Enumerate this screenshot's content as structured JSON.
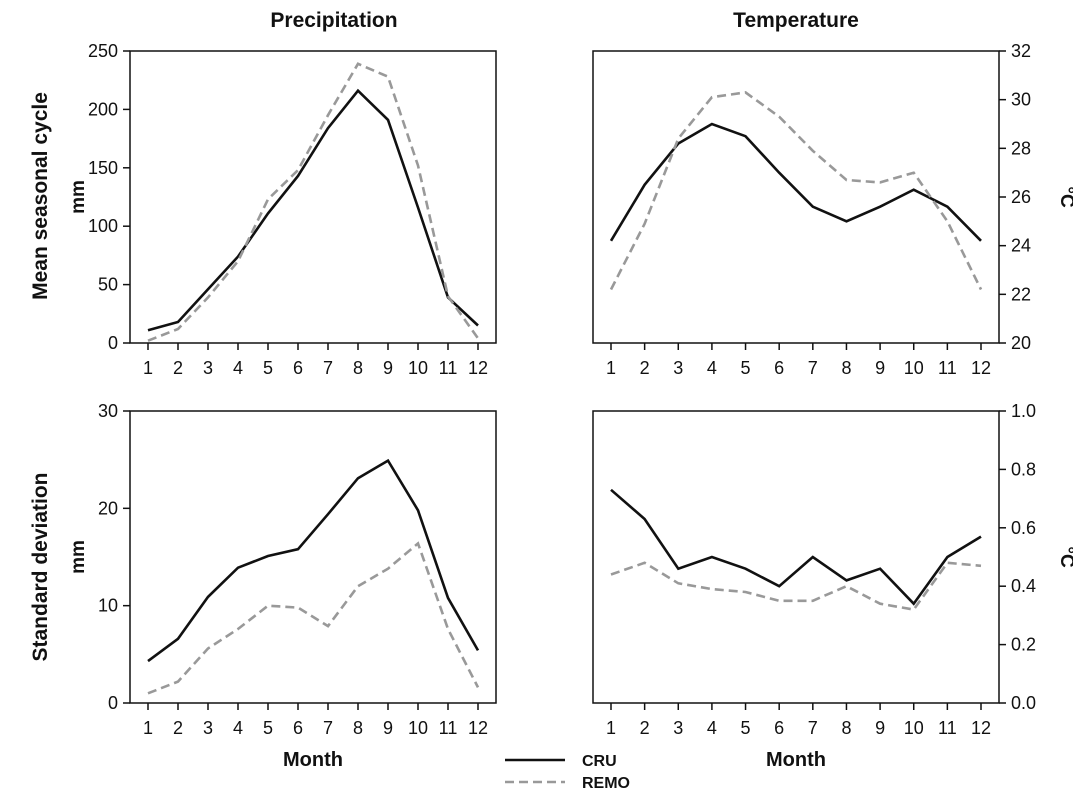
{
  "figure": {
    "column_titles": [
      "Precipitation",
      "Temperature"
    ],
    "row_titles": [
      "Mean seasonal cycle",
      "Standard deviation"
    ],
    "legend": [
      {
        "label": "CRU",
        "color": "#111111",
        "dash": "solid"
      },
      {
        "label": "REMO",
        "color": "#999999",
        "dash": "dashed"
      }
    ]
  },
  "chart_data": [
    {
      "type": "line",
      "title": "Precipitation",
      "row": "Mean seasonal cycle",
      "xlabel": "",
      "ylabel": "mm",
      "x": [
        1,
        2,
        3,
        4,
        5,
        6,
        7,
        8,
        9,
        10,
        11,
        12
      ],
      "xticks": [
        "1",
        "2",
        "3",
        "4",
        "5",
        "6",
        "7",
        "8",
        "9",
        "10",
        "11",
        "12"
      ],
      "ylim": [
        0,
        250
      ],
      "yticks": [
        "0",
        "50",
        "100",
        "150",
        "200",
        "250"
      ],
      "yaxis_side": "left",
      "series": [
        {
          "name": "CRU",
          "values": [
            11,
            18,
            46,
            74,
            111,
            143,
            184,
            216,
            191,
            116,
            39,
            15
          ]
        },
        {
          "name": "REMO",
          "values": [
            2,
            12,
            39,
            70,
            123,
            148,
            195,
            239,
            228,
            152,
            40,
            4
          ]
        }
      ]
    },
    {
      "type": "line",
      "title": "Temperature",
      "row": "Mean seasonal cycle",
      "xlabel": "",
      "ylabel": "°C",
      "x": [
        1,
        2,
        3,
        4,
        5,
        6,
        7,
        8,
        9,
        10,
        11,
        12
      ],
      "xticks": [
        "1",
        "2",
        "3",
        "4",
        "5",
        "6",
        "7",
        "8",
        "9",
        "10",
        "11",
        "12"
      ],
      "ylim": [
        20,
        32
      ],
      "yticks": [
        "20",
        "22",
        "24",
        "26",
        "28",
        "30",
        "32"
      ],
      "yaxis_side": "right",
      "series": [
        {
          "name": "CRU",
          "values": [
            24.2,
            26.5,
            28.2,
            29.0,
            28.5,
            27.0,
            25.6,
            25.0,
            25.6,
            26.3,
            25.6,
            24.2
          ]
        },
        {
          "name": "REMO",
          "values": [
            22.2,
            24.9,
            28.4,
            30.1,
            30.3,
            29.3,
            27.9,
            26.7,
            26.6,
            27.0,
            25.0,
            22.2
          ]
        }
      ]
    },
    {
      "type": "line",
      "title": "",
      "row": "Standard deviation",
      "xlabel": "Month",
      "ylabel": "mm",
      "x": [
        1,
        2,
        3,
        4,
        5,
        6,
        7,
        8,
        9,
        10,
        11,
        12
      ],
      "xticks": [
        "1",
        "2",
        "3",
        "4",
        "5",
        "6",
        "7",
        "8",
        "9",
        "10",
        "11",
        "12"
      ],
      "ylim": [
        0,
        30
      ],
      "yticks": [
        "0",
        "10",
        "20",
        "30"
      ],
      "yaxis_side": "left",
      "series": [
        {
          "name": "CRU",
          "values": [
            4.3,
            6.6,
            10.9,
            13.9,
            15.1,
            15.8,
            19.4,
            23.1,
            24.9,
            19.8,
            10.8,
            5.4
          ]
        },
        {
          "name": "REMO",
          "values": [
            1.0,
            2.2,
            5.6,
            7.6,
            10.0,
            9.8,
            7.9,
            12.0,
            13.8,
            16.4,
            7.6,
            1.6
          ]
        }
      ]
    },
    {
      "type": "line",
      "title": "",
      "row": "Standard deviation",
      "xlabel": "Month",
      "ylabel": "°C",
      "x": [
        1,
        2,
        3,
        4,
        5,
        6,
        7,
        8,
        9,
        10,
        11,
        12
      ],
      "xticks": [
        "1",
        "2",
        "3",
        "4",
        "5",
        "6",
        "7",
        "8",
        "9",
        "10",
        "11",
        "12"
      ],
      "ylim": [
        0,
        1
      ],
      "yticks": [
        "0.0",
        "0.2",
        "0.4",
        "0.6",
        "0.8",
        "1.0"
      ],
      "yaxis_side": "right",
      "series": [
        {
          "name": "CRU",
          "values": [
            0.73,
            0.63,
            0.46,
            0.5,
            0.46,
            0.4,
            0.5,
            0.42,
            0.46,
            0.34,
            0.5,
            0.57
          ]
        },
        {
          "name": "REMO",
          "values": [
            0.44,
            0.48,
            0.41,
            0.39,
            0.38,
            0.35,
            0.35,
            0.4,
            0.34,
            0.32,
            0.48,
            0.47
          ]
        }
      ]
    }
  ]
}
